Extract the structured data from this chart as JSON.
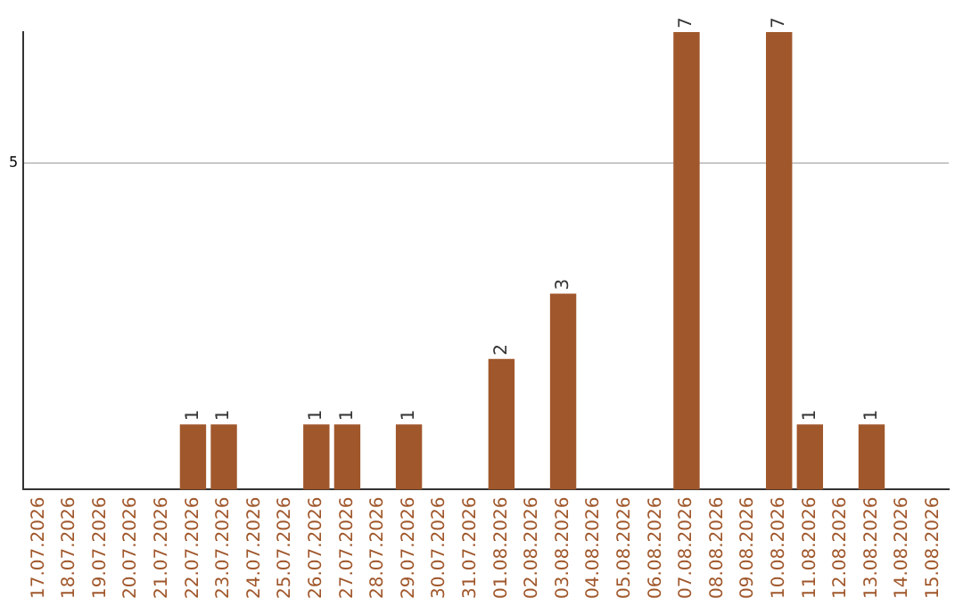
{
  "chart_data": {
    "type": "bar",
    "categories": [
      "17.07.2026",
      "18.07.2026",
      "19.07.2026",
      "20.07.2026",
      "21.07.2026",
      "22.07.2026",
      "23.07.2026",
      "24.07.2026",
      "25.07.2026",
      "26.07.2026",
      "27.07.2026",
      "28.07.2026",
      "29.07.2026",
      "30.07.2026",
      "31.07.2026",
      "01.08.2026",
      "02.08.2026",
      "03.08.2026",
      "04.08.2026",
      "05.08.2026",
      "06.08.2026",
      "07.08.2026",
      "08.08.2026",
      "09.08.2026",
      "10.08.2026",
      "11.08.2026",
      "12.08.2026",
      "13.08.2026",
      "14.08.2026",
      "15.08.2026"
    ],
    "values": [
      null,
      null,
      null,
      null,
      null,
      1,
      1,
      null,
      null,
      1,
      1,
      null,
      1,
      null,
      null,
      2,
      null,
      3,
      null,
      null,
      null,
      7,
      null,
      null,
      7,
      1,
      null,
      1,
      null,
      null
    ],
    "color": "#a0572b",
    "ylim": [
      0,
      7
    ],
    "yticks": [
      5
    ],
    "grid": "y",
    "legend": false,
    "data_labels": true
  }
}
